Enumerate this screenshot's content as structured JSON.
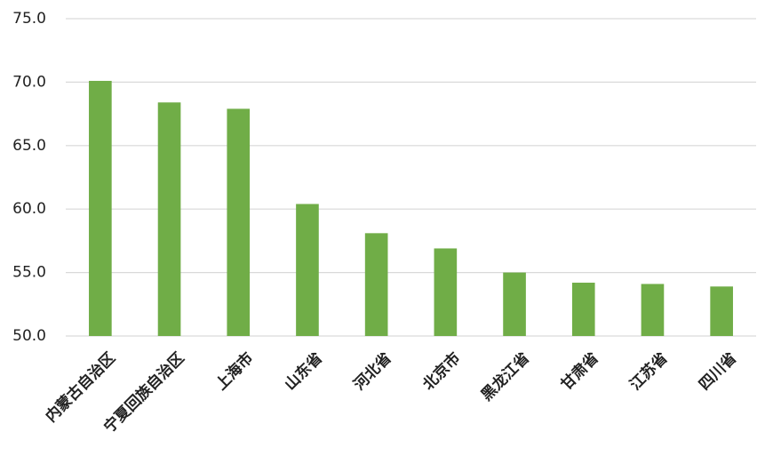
{
  "chart_data": {
    "type": "bar",
    "categories": [
      "内蒙古自治区",
      "宁夏回族自治区",
      "上海市",
      "山东省",
      "河北省",
      "北京市",
      "黑龙江省",
      "甘肃省",
      "江苏省",
      "四川省"
    ],
    "values": [
      70.1,
      68.4,
      67.9,
      60.4,
      58.1,
      56.9,
      55.0,
      54.2,
      54.1,
      53.9
    ],
    "color": "#70ad47",
    "ylim": [
      50,
      75
    ],
    "yticks": [
      {
        "value": 50,
        "label": "50.0"
      },
      {
        "value": 55,
        "label": "55.0"
      },
      {
        "value": 60,
        "label": "60.0"
      },
      {
        "value": 65,
        "label": "65.0"
      },
      {
        "value": 70,
        "label": "70.0"
      },
      {
        "value": 75,
        "label": "75.0"
      }
    ],
    "grid": true
  }
}
